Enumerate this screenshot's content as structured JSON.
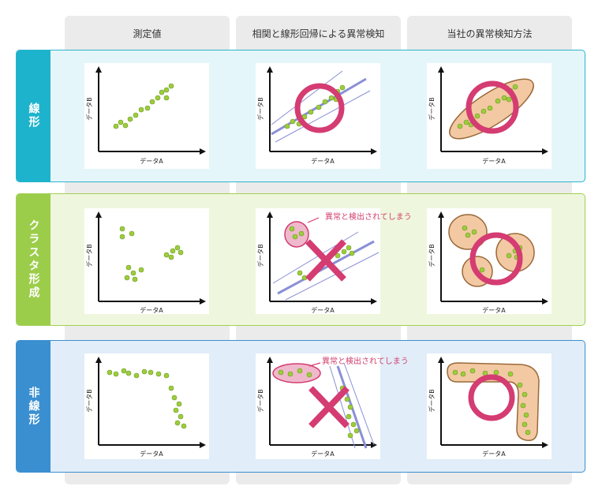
{
  "columns": [
    "測定値",
    "相関と線形回帰による異常検知",
    "当社の異常検知方法"
  ],
  "rows": [
    {
      "label": "線形",
      "color": "#1db3cc",
      "bg": "#e5f6fb",
      "border": "#2ab4cd"
    },
    {
      "label": "クラスタ形成",
      "color": "#9ccd4a",
      "bg": "#eef7dd",
      "border": "#a2cf55"
    },
    {
      "label": "非線形",
      "color": "#3a8fd1",
      "bg": "#e1edf8",
      "border": "#3d8fd0"
    }
  ],
  "axis": {
    "x": "データA",
    "y": "データB"
  },
  "callout": "異常と検出されてしまう",
  "colors": {
    "point": "#9ccd3c",
    "ring": "#d43c72",
    "blob": "#f3c9a4",
    "blob_stroke": "#9a6a3a",
    "line": "#8a8fd6"
  }
}
